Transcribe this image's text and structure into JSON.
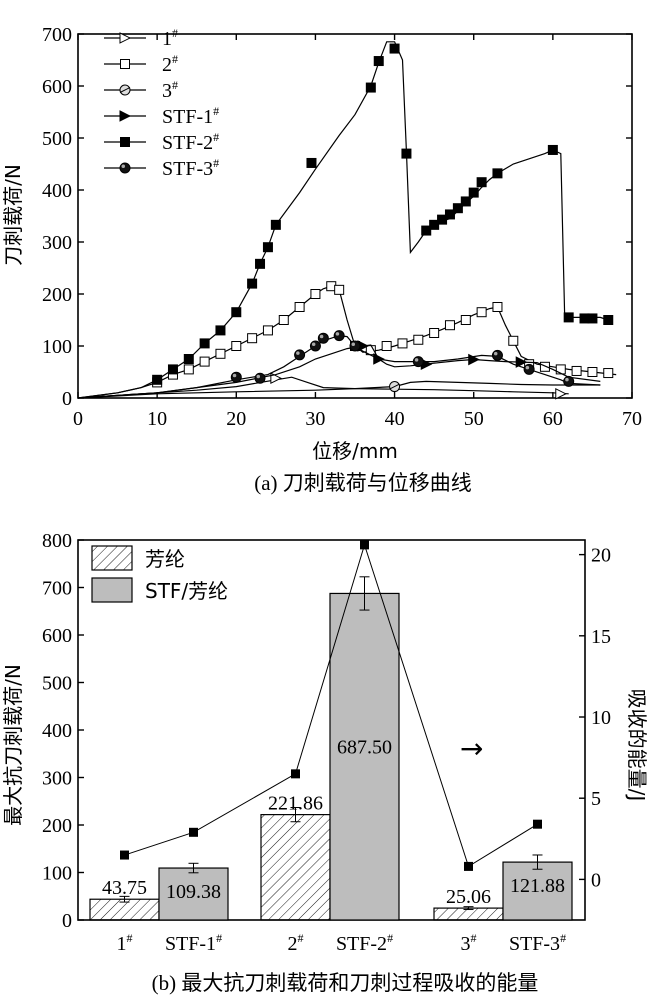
{
  "chart_data": [
    {
      "type": "line",
      "caption": "(a) 刀刺载荷与位移曲线",
      "xlabel": "位移/mm",
      "ylabel": "刀刺载荷/N",
      "xlim": [
        0,
        70
      ],
      "ylim": [
        0,
        700
      ],
      "xticks": [
        0,
        10,
        20,
        30,
        40,
        50,
        60,
        70
      ],
      "yticks": [
        0,
        100,
        200,
        300,
        400,
        500,
        600,
        700
      ],
      "legend_position": "top-left",
      "series": [
        {
          "name": "1#",
          "marker": "triangle-right-open",
          "points": [
            [
              0,
              0
            ],
            [
              5,
              5
            ],
            [
              10,
              10
            ],
            [
              15,
              15
            ],
            [
              20,
              22
            ],
            [
              25,
              35
            ],
            [
              27,
              40
            ],
            [
              29,
              30
            ],
            [
              31,
              20
            ],
            [
              35,
              18
            ],
            [
              40,
              17
            ],
            [
              45,
              16
            ],
            [
              50,
              14
            ],
            [
              55,
              12
            ],
            [
              60,
              10
            ],
            [
              62,
              8
            ]
          ],
          "markers": [
            [
              25,
              38
            ],
            [
              61,
              8
            ]
          ]
        },
        {
          "name": "2#",
          "marker": "square-open",
          "points": [
            [
              0,
              0
            ],
            [
              5,
              10
            ],
            [
              8,
              20
            ],
            [
              10,
              30
            ],
            [
              12,
              45
            ],
            [
              14,
              55
            ],
            [
              16,
              70
            ],
            [
              18,
              85
            ],
            [
              20,
              100
            ],
            [
              22,
              115
            ],
            [
              24,
              130
            ],
            [
              26,
              150
            ],
            [
              28,
              175
            ],
            [
              30,
              200
            ],
            [
              31,
              210
            ],
            [
              32,
              215
            ],
            [
              33,
              208
            ],
            [
              34,
              150
            ],
            [
              35,
              100
            ],
            [
              36,
              88
            ],
            [
              38,
              92
            ],
            [
              40,
              100
            ],
            [
              42,
              110
            ],
            [
              44,
              120
            ],
            [
              46,
              132
            ],
            [
              48,
              145
            ],
            [
              50,
              160
            ],
            [
              52,
              172
            ],
            [
              53,
              175
            ],
            [
              54,
              140
            ],
            [
              55,
              110
            ],
            [
              56,
              80
            ],
            [
              58,
              65
            ],
            [
              60,
              60
            ],
            [
              62,
              55
            ],
            [
              65,
              50
            ],
            [
              68,
              45
            ]
          ],
          "markers": [
            [
              10,
              30
            ],
            [
              12,
              45
            ],
            [
              14,
              55
            ],
            [
              16,
              70
            ],
            [
              18,
              85
            ],
            [
              20,
              100
            ],
            [
              22,
              115
            ],
            [
              24,
              130
            ],
            [
              26,
              150
            ],
            [
              28,
              175
            ],
            [
              30,
              200
            ],
            [
              32,
              215
            ],
            [
              33,
              208
            ],
            [
              35,
              100
            ],
            [
              37,
              92
            ],
            [
              39,
              100
            ],
            [
              41,
              105
            ],
            [
              43,
              112
            ],
            [
              45,
              125
            ],
            [
              47,
              140
            ],
            [
              49,
              150
            ],
            [
              51,
              165
            ],
            [
              53,
              175
            ],
            [
              55,
              110
            ],
            [
              57,
              65
            ],
            [
              59,
              60
            ],
            [
              61,
              55
            ],
            [
              63,
              52
            ],
            [
              65,
              50
            ],
            [
              67,
              48
            ]
          ]
        },
        {
          "name": "3#",
          "marker": "circle-cross",
          "points": [
            [
              0,
              0
            ],
            [
              10,
              8
            ],
            [
              20,
              12
            ],
            [
              30,
              15
            ],
            [
              35,
              18
            ],
            [
              40,
              22
            ],
            [
              42,
              30
            ],
            [
              44,
              32
            ],
            [
              48,
              30
            ],
            [
              52,
              28
            ],
            [
              56,
              26
            ],
            [
              60,
              25
            ],
            [
              66,
              25
            ]
          ],
          "markers": [
            [
              40,
              22
            ]
          ]
        },
        {
          "name": "STF-1#",
          "marker": "triangle-right-filled",
          "points": [
            [
              0,
              0
            ],
            [
              10,
              10
            ],
            [
              15,
              20
            ],
            [
              20,
              30
            ],
            [
              25,
              45
            ],
            [
              28,
              60
            ],
            [
              30,
              75
            ],
            [
              32,
              85
            ],
            [
              34,
              95
            ],
            [
              36,
              100
            ],
            [
              37,
              102
            ],
            [
              38,
              75
            ],
            [
              39,
              65
            ],
            [
              40,
              60
            ],
            [
              42,
              62
            ],
            [
              45,
              67
            ],
            [
              48,
              72
            ],
            [
              50,
              74
            ],
            [
              52,
              72
            ],
            [
              54,
              70
            ],
            [
              56,
              69
            ],
            [
              58,
              68
            ],
            [
              60,
              55
            ],
            [
              62,
              40
            ],
            [
              66,
              32
            ]
          ],
          "markers": [
            [
              36,
              100
            ],
            [
              38,
              75
            ],
            [
              44,
              65
            ],
            [
              50,
              74
            ],
            [
              56,
              69
            ]
          ]
        },
        {
          "name": "STF-2#",
          "marker": "square-filled",
          "points": [
            [
              0,
              0
            ],
            [
              5,
              10
            ],
            [
              8,
              20
            ],
            [
              10,
              35
            ],
            [
              12,
              55
            ],
            [
              14,
              75
            ],
            [
              16,
              105
            ],
            [
              18,
              130
            ],
            [
              20,
              165
            ],
            [
              22,
              220
            ],
            [
              23,
              258
            ],
            [
              24,
              290
            ],
            [
              25,
              333
            ],
            [
              28,
              395
            ],
            [
              30,
              440
            ],
            [
              33,
              505
            ],
            [
              35,
              545
            ],
            [
              37,
              600
            ],
            [
              38,
              645
            ],
            [
              39,
              685
            ],
            [
              40,
              685
            ],
            [
              41,
              650
            ],
            [
              41.5,
              475
            ],
            [
              42,
              280
            ],
            [
              43,
              300
            ],
            [
              44,
              322
            ],
            [
              45,
              330
            ],
            [
              46,
              340
            ],
            [
              47,
              345
            ],
            [
              48,
              360
            ],
            [
              49,
              375
            ],
            [
              50,
              388
            ],
            [
              51,
              405
            ],
            [
              52,
              420
            ],
            [
              53,
              432
            ],
            [
              55,
              450
            ],
            [
              57,
              460
            ],
            [
              59,
              470
            ],
            [
              60,
              477
            ],
            [
              61,
              470
            ],
            [
              61.5,
              155
            ],
            [
              62,
              155
            ],
            [
              66,
              155
            ],
            [
              67,
              150
            ]
          ],
          "markers": [
            [
              10,
              35
            ],
            [
              12,
              55
            ],
            [
              14,
              75
            ],
            [
              16,
              105
            ],
            [
              18,
              130
            ],
            [
              20,
              165
            ],
            [
              22,
              220
            ],
            [
              23,
              258
            ],
            [
              24,
              290
            ],
            [
              25,
              333
            ],
            [
              29.5,
              452
            ],
            [
              37,
              597
            ],
            [
              38,
              648
            ],
            [
              40,
              672
            ],
            [
              41.5,
              470
            ],
            [
              44,
              322
            ],
            [
              45,
              333
            ],
            [
              46,
              343
            ],
            [
              47,
              353
            ],
            [
              48,
              365
            ],
            [
              49,
              378
            ],
            [
              50,
              395
            ],
            [
              51,
              415
            ],
            [
              53,
              432
            ],
            [
              60,
              477
            ],
            [
              62,
              155
            ],
            [
              64,
              153
            ],
            [
              65,
              153
            ],
            [
              67,
              150
            ]
          ]
        },
        {
          "name": "STF-3#",
          "marker": "circle-filled",
          "points": [
            [
              0,
              0
            ],
            [
              10,
              10
            ],
            [
              15,
              20
            ],
            [
              20,
              35
            ],
            [
              22,
              40
            ],
            [
              24,
              45
            ],
            [
              26,
              60
            ],
            [
              28,
              80
            ],
            [
              30,
              100
            ],
            [
              31,
              110
            ],
            [
              32,
              115
            ],
            [
              33,
              120
            ],
            [
              34,
              118
            ],
            [
              35,
              100
            ],
            [
              36,
              90
            ],
            [
              38,
              75
            ],
            [
              40,
              70
            ],
            [
              42,
              70
            ],
            [
              45,
              70
            ],
            [
              48,
              75
            ],
            [
              51,
              82
            ],
            [
              53,
              80
            ],
            [
              55,
              65
            ],
            [
              57,
              55
            ],
            [
              59,
              45
            ],
            [
              61,
              35
            ],
            [
              62,
              28
            ],
            [
              66,
              25
            ]
          ],
          "markers": [
            [
              20,
              40
            ],
            [
              23,
              38
            ],
            [
              28,
              83
            ],
            [
              30,
              100
            ],
            [
              31,
              115
            ],
            [
              33,
              120
            ],
            [
              35,
              100
            ],
            [
              43,
              70
            ],
            [
              53,
              82
            ],
            [
              57,
              55
            ],
            [
              62,
              32
            ]
          ]
        }
      ]
    },
    {
      "type": "bar",
      "caption": "(b) 最大抗刀刺载荷和刀刺过程吸收的能量",
      "ylabel": "最大抗刀刺载荷/N",
      "ylabel_right": "吸收的能量/J",
      "ylim": [
        0,
        800
      ],
      "yticks": [
        0,
        100,
        200,
        300,
        400,
        500,
        600,
        700,
        800
      ],
      "ylim_right": [
        -2.5,
        20.9
      ],
      "yticks_right": [
        0,
        5,
        10,
        15,
        20
      ],
      "legend": [
        "芳纶",
        "STF/芳纶"
      ],
      "legend_position": "top-left",
      "arrow": "→",
      "categories": [
        "1#",
        "STF-1#",
        "2#",
        "STF-2#",
        "3#",
        "STF-3#"
      ],
      "bars": [
        {
          "label": "1#",
          "group": "芳纶",
          "value": 43.75,
          "value_label": "43.75",
          "error": 6
        },
        {
          "label": "STF-1#",
          "group": "STF/芳纶",
          "value": 109.38,
          "value_label": "109.38",
          "error": 10
        },
        {
          "label": "2#",
          "group": "芳纶",
          "value": 221.86,
          "value_label": "221.86",
          "error": 15
        },
        {
          "label": "STF-2#",
          "group": "STF/芳纶",
          "value": 687.5,
          "value_label": "687.50",
          "error": 35
        },
        {
          "label": "3#",
          "group": "芳纶",
          "value": 25.06,
          "value_label": "25.06",
          "error": 3
        },
        {
          "label": "STF-3#",
          "group": "STF/芳纶",
          "value": 121.88,
          "value_label": "121.88",
          "error": 15
        }
      ],
      "energy_line": {
        "name": "吸收的能量",
        "values": [
          1.5,
          2.9,
          6.5,
          20.6,
          0.8,
          3.4
        ]
      }
    }
  ]
}
